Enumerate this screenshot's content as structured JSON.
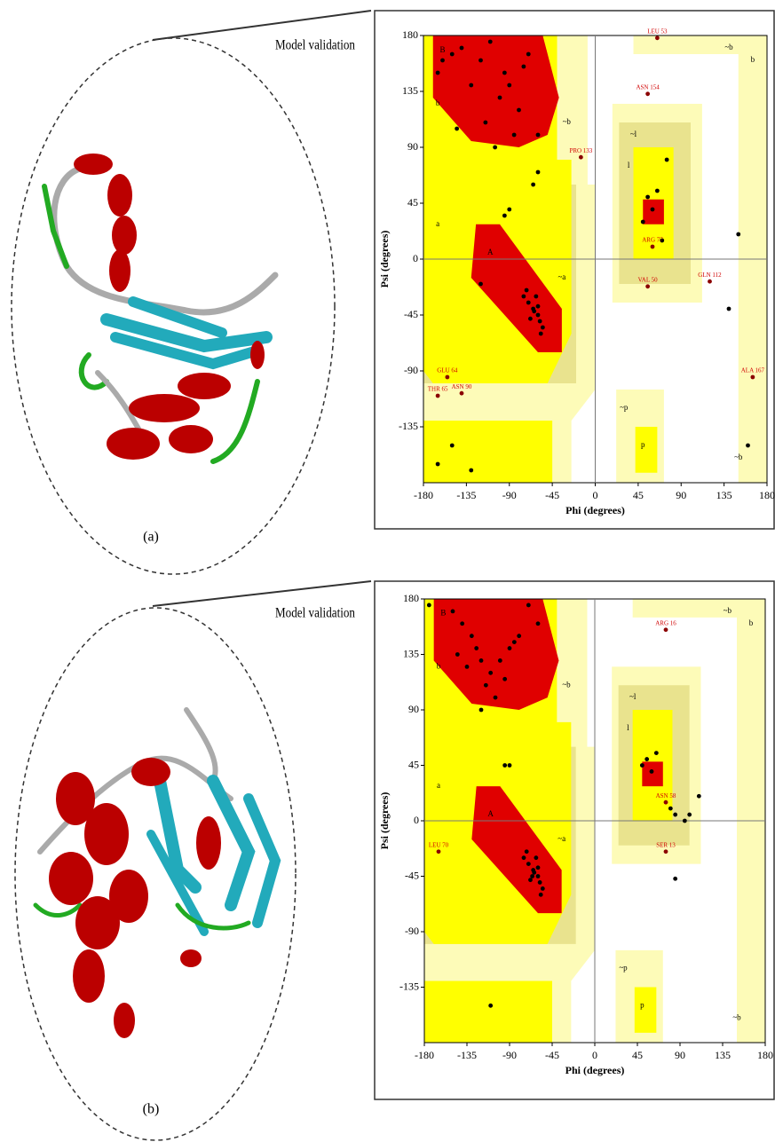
{
  "figure": {
    "panels": [
      {
        "heading": "Model validation",
        "caption": "(a)"
      },
      {
        "heading": "Model validation",
        "caption": "(b)"
      }
    ]
  },
  "chart_data": [
    {
      "type": "scatter",
      "xlabel": "Phi (degrees)",
      "ylabel": "Psi (degrees)",
      "xlim": [
        -180,
        180
      ],
      "ylim": [
        -180,
        180
      ],
      "xticks": [
        -180,
        -135,
        -90,
        -45,
        0,
        45,
        90,
        135,
        180
      ],
      "yticks": [
        -135,
        -90,
        -45,
        0,
        45,
        90,
        135,
        180
      ],
      "series": [
        {
          "color": "#000000",
          "x": [
            -150,
            -140,
            -120,
            -110,
            -95,
            -90,
            -100,
            -80,
            -75,
            -70,
            -130,
            -115,
            -85,
            -60,
            -145,
            -160,
            -165,
            -105,
            -65,
            -60,
            -70,
            -58,
            -62,
            -55,
            -68,
            -64,
            -72,
            -60,
            -57,
            -75,
            -120,
            -95,
            -90,
            -60,
            -65,
            55,
            60,
            50,
            70,
            65,
            75,
            150,
            140,
            -165,
            -130,
            160,
            -150
          ],
          "y": [
            165,
            170,
            160,
            175,
            150,
            140,
            130,
            120,
            155,
            165,
            140,
            110,
            100,
            100,
            105,
            160,
            150,
            90,
            -40,
            -45,
            -35,
            -50,
            -30,
            -55,
            -48,
            -42,
            -25,
            -38,
            -60,
            -30,
            -20,
            35,
            40,
            70,
            60,
            50,
            40,
            30,
            15,
            55,
            80,
            20,
            -40,
            -165,
            -170,
            -150,
            -150
          ]
        }
      ],
      "annotations": [
        {
          "text": "LEU 53",
          "x": 65,
          "y": 178
        },
        {
          "text": "ASN 154",
          "x": 55,
          "y": 133
        },
        {
          "text": "PRO 133",
          "x": -15,
          "y": 82
        },
        {
          "text": "ARG 77",
          "x": 60,
          "y": 10
        },
        {
          "text": "GLN 112",
          "x": 120,
          "y": -18
        },
        {
          "text": "VAL 50",
          "x": 55,
          "y": -22
        },
        {
          "text": "GLU 64",
          "x": -155,
          "y": -95
        },
        {
          "text": "THR 65",
          "x": -165,
          "y": -110
        },
        {
          "text": "ASN 90",
          "x": -140,
          "y": -108
        },
        {
          "text": "ALA 167",
          "x": 165,
          "y": -95
        }
      ],
      "region_labels": [
        {
          "text": "B",
          "x": -160,
          "y": 168
        },
        {
          "text": "b",
          "x": -165,
          "y": 125
        },
        {
          "text": "a",
          "x": -165,
          "y": 28
        },
        {
          "text": "A",
          "x": -110,
          "y": 5
        },
        {
          "text": "~b",
          "x": -30,
          "y": 110
        },
        {
          "text": "~l",
          "x": 40,
          "y": 100
        },
        {
          "text": "l",
          "x": 35,
          "y": 75
        },
        {
          "text": "~a",
          "x": -35,
          "y": -15
        },
        {
          "text": "~p",
          "x": 30,
          "y": -120
        },
        {
          "text": "p",
          "x": 50,
          "y": -150
        },
        {
          "text": "~b",
          "x": 150,
          "y": -160
        },
        {
          "text": "~b",
          "x": 140,
          "y": 170
        },
        {
          "text": "b",
          "x": 165,
          "y": 160
        }
      ]
    },
    {
      "type": "scatter",
      "xlabel": "Phi (degrees)",
      "ylabel": "Psi (degrees)",
      "xlim": [
        -180,
        180
      ],
      "ylim": [
        -180,
        180
      ],
      "xticks": [
        -180,
        -135,
        -90,
        -45,
        0,
        45,
        90,
        135,
        180
      ],
      "yticks": [
        -135,
        -90,
        -45,
        0,
        45,
        90,
        135,
        180
      ],
      "series": [
        {
          "color": "#000000",
          "x": [
            -175,
            -150,
            -140,
            -130,
            -125,
            -120,
            -110,
            -115,
            -100,
            -90,
            -80,
            -70,
            -60,
            -135,
            -145,
            -105,
            -95,
            -85,
            -120,
            -65,
            -60,
            -70,
            -58,
            -62,
            -55,
            -68,
            -64,
            -72,
            -60,
            -57,
            -75,
            -66,
            -95,
            -90,
            55,
            50,
            60,
            65,
            80,
            85,
            95,
            100,
            110,
            85,
            -110
          ],
          "y": [
            175,
            170,
            160,
            150,
            140,
            130,
            120,
            110,
            130,
            140,
            150,
            175,
            160,
            125,
            135,
            100,
            115,
            145,
            90,
            -40,
            -45,
            -35,
            -50,
            -30,
            -55,
            -48,
            -42,
            -25,
            -38,
            -60,
            -30,
            -45,
            45,
            45,
            50,
            45,
            40,
            55,
            10,
            5,
            0,
            5,
            20,
            -47,
            -150
          ]
        }
      ],
      "annotations": [
        {
          "text": "ARG 16",
          "x": 75,
          "y": 155
        },
        {
          "text": "ASN 58",
          "x": 75,
          "y": 15
        },
        {
          "text": "SER 13",
          "x": 75,
          "y": -25
        },
        {
          "text": "LEU 70",
          "x": -165,
          "y": -25
        }
      ],
      "region_labels": [
        {
          "text": "B",
          "x": -160,
          "y": 168
        },
        {
          "text": "b",
          "x": -165,
          "y": 125
        },
        {
          "text": "a",
          "x": -165,
          "y": 28
        },
        {
          "text": "A",
          "x": -110,
          "y": 5
        },
        {
          "text": "~b",
          "x": -30,
          "y": 110
        },
        {
          "text": "~l",
          "x": 40,
          "y": 100
        },
        {
          "text": "l",
          "x": 35,
          "y": 75
        },
        {
          "text": "~a",
          "x": -35,
          "y": -15
        },
        {
          "text": "~p",
          "x": 30,
          "y": -120
        },
        {
          "text": "p",
          "x": 50,
          "y": -150
        },
        {
          "text": "~b",
          "x": 150,
          "y": -160
        },
        {
          "text": "~b",
          "x": 140,
          "y": 170
        },
        {
          "text": "b",
          "x": 165,
          "y": 160
        }
      ]
    }
  ]
}
